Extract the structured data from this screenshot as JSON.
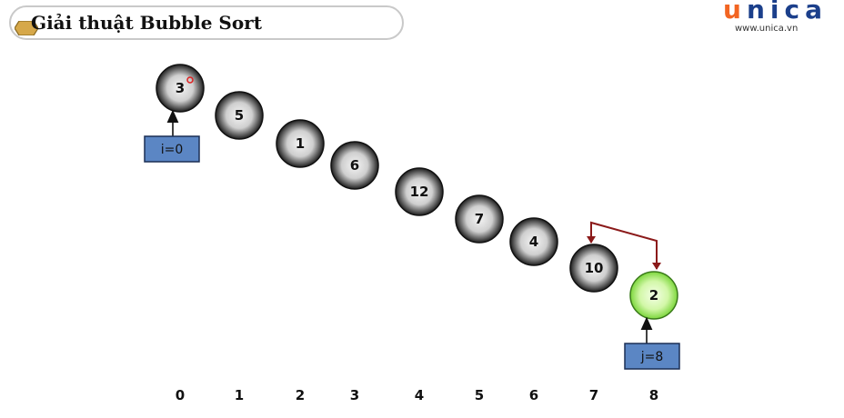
{
  "header": {
    "title": "Giải thuật Bubble Sort"
  },
  "logo": {
    "wordmark_first": "u",
    "wordmark_rest": "nica",
    "url": "www.unica.vn"
  },
  "array": [
    {
      "index": "0",
      "value": "3"
    },
    {
      "index": "1",
      "value": "5"
    },
    {
      "index": "2",
      "value": "1"
    },
    {
      "index": "3",
      "value": "6"
    },
    {
      "index": "4",
      "value": "12"
    },
    {
      "index": "5",
      "value": "7"
    },
    {
      "index": "6",
      "value": "4"
    },
    {
      "index": "7",
      "value": "10"
    },
    {
      "index": "8",
      "value": "2"
    }
  ],
  "highlighted_index": 8,
  "pointers": {
    "i": {
      "label": "i=0",
      "target_index": 0
    },
    "j": {
      "label": "j=8",
      "target_index": 8
    }
  },
  "swap_arrow": {
    "from_index": 7,
    "to_index": 8
  },
  "colors": {
    "ball_dark": "#1e1e1e",
    "ball_light": "#f2f2f2",
    "highlight_light": "#f4ffe6",
    "highlight_dark": "#7cd63c",
    "pointer_box": "#5b86c4",
    "swap_arrow": "#8b1a1a",
    "title_hex": "#d6a84a"
  }
}
